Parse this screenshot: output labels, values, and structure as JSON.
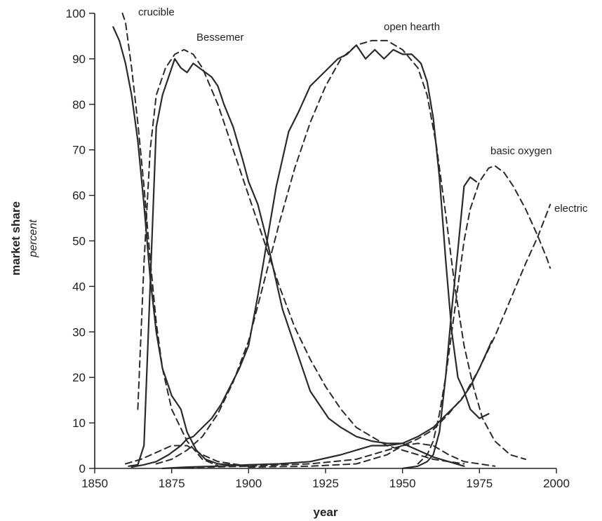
{
  "chart_data": {
    "type": "line",
    "xlabel": "year",
    "ylabel": "market share",
    "ylabel_sub": "percent",
    "xlim": [
      1850,
      2000
    ],
    "ylim": [
      0,
      100
    ],
    "x_ticks": [
      1850,
      1875,
      1900,
      1925,
      1950,
      1975,
      2000
    ],
    "y_ticks": [
      0,
      10,
      20,
      30,
      40,
      50,
      60,
      70,
      80,
      90,
      100
    ],
    "grid": false,
    "legend": "none",
    "series_labels": [
      "crucible",
      "Bessemer",
      "open hearth",
      "basic oxygen",
      "electric"
    ],
    "series": [
      {
        "name": "crucible",
        "style": "actual",
        "points": [
          [
            1856,
            97
          ],
          [
            1858,
            94
          ],
          [
            1860,
            89
          ],
          [
            1862,
            82
          ],
          [
            1864,
            72
          ],
          [
            1866,
            58
          ],
          [
            1868,
            42
          ],
          [
            1870,
            30
          ],
          [
            1872,
            22
          ],
          [
            1875,
            16
          ],
          [
            1878,
            13
          ],
          [
            1880,
            8
          ],
          [
            1883,
            4
          ],
          [
            1886,
            2
          ],
          [
            1890,
            1
          ],
          [
            1900,
            0.5
          ]
        ]
      },
      {
        "name": "crucible",
        "style": "fitted",
        "points": [
          [
            1859,
            100
          ],
          [
            1860,
            98
          ],
          [
            1862,
            88
          ],
          [
            1864,
            76
          ],
          [
            1866,
            62
          ],
          [
            1868,
            46
          ],
          [
            1870,
            32
          ],
          [
            1872,
            22
          ],
          [
            1875,
            13
          ],
          [
            1880,
            6
          ],
          [
            1885,
            2
          ],
          [
            1890,
            0.6
          ]
        ]
      },
      {
        "name": "Bessemer",
        "style": "actual",
        "points": [
          [
            1861,
            0.5
          ],
          [
            1864,
            0.8
          ],
          [
            1866,
            5
          ],
          [
            1868,
            40
          ],
          [
            1870,
            75
          ],
          [
            1872,
            82
          ],
          [
            1874,
            86
          ],
          [
            1876,
            90
          ],
          [
            1878,
            88
          ],
          [
            1880,
            87
          ],
          [
            1882,
            89
          ],
          [
            1884,
            88
          ],
          [
            1886,
            87
          ],
          [
            1888,
            86
          ],
          [
            1890,
            84
          ],
          [
            1892,
            80
          ],
          [
            1895,
            75
          ],
          [
            1898,
            68
          ],
          [
            1900,
            63
          ],
          [
            1903,
            58
          ],
          [
            1906,
            50
          ],
          [
            1908,
            44
          ],
          [
            1911,
            35
          ],
          [
            1914,
            29
          ],
          [
            1917,
            23
          ],
          [
            1920,
            17
          ],
          [
            1923,
            14
          ],
          [
            1926,
            11
          ],
          [
            1930,
            9
          ],
          [
            1935,
            7
          ],
          [
            1940,
            6
          ],
          [
            1945,
            5.5
          ],
          [
            1950,
            5.5
          ],
          [
            1955,
            4
          ],
          [
            1960,
            2.5
          ],
          [
            1965,
            1.5
          ],
          [
            1970,
            0.5
          ]
        ]
      },
      {
        "name": "Bessemer",
        "style": "fitted",
        "points": [
          [
            1864,
            13
          ],
          [
            1866,
            45
          ],
          [
            1868,
            70
          ],
          [
            1870,
            82
          ],
          [
            1873,
            88
          ],
          [
            1876,
            91
          ],
          [
            1879,
            92
          ],
          [
            1882,
            91
          ],
          [
            1885,
            88
          ],
          [
            1890,
            80
          ],
          [
            1895,
            70
          ],
          [
            1900,
            60
          ],
          [
            1905,
            50
          ],
          [
            1910,
            40
          ],
          [
            1915,
            31
          ],
          [
            1920,
            24
          ],
          [
            1925,
            18
          ],
          [
            1930,
            13
          ],
          [
            1935,
            9
          ],
          [
            1940,
            7
          ],
          [
            1945,
            5
          ],
          [
            1950,
            4
          ],
          [
            1955,
            3
          ],
          [
            1960,
            2
          ],
          [
            1970,
            1
          ]
        ]
      },
      {
        "name": "open hearth",
        "style": "actual",
        "points": [
          [
            1862,
            0.3
          ],
          [
            1866,
            0.8
          ],
          [
            1870,
            1.5
          ],
          [
            1874,
            3
          ],
          [
            1878,
            5
          ],
          [
            1880,
            6.5
          ],
          [
            1882,
            7
          ],
          [
            1885,
            9
          ],
          [
            1888,
            11
          ],
          [
            1891,
            14
          ],
          [
            1894,
            18
          ],
          [
            1897,
            22
          ],
          [
            1900,
            27
          ],
          [
            1903,
            38
          ],
          [
            1905,
            46
          ],
          [
            1907,
            54
          ],
          [
            1909,
            62
          ],
          [
            1911,
            68
          ],
          [
            1913,
            74
          ],
          [
            1916,
            78
          ],
          [
            1918,
            81
          ],
          [
            1920,
            84
          ],
          [
            1923,
            86
          ],
          [
            1926,
            88
          ],
          [
            1929,
            90
          ],
          [
            1932,
            91
          ],
          [
            1935,
            93
          ],
          [
            1938,
            90
          ],
          [
            1941,
            92
          ],
          [
            1944,
            90
          ],
          [
            1947,
            92
          ],
          [
            1950,
            91
          ],
          [
            1953,
            91
          ],
          [
            1956,
            89
          ],
          [
            1958,
            85
          ],
          [
            1960,
            77
          ],
          [
            1962,
            64
          ],
          [
            1964,
            46
          ],
          [
            1966,
            30
          ],
          [
            1968,
            20
          ],
          [
            1970,
            17
          ],
          [
            1972,
            13
          ],
          [
            1975,
            11
          ],
          [
            1978,
            12
          ]
        ]
      },
      {
        "name": "open hearth",
        "style": "fitted",
        "points": [
          [
            1870,
            1
          ],
          [
            1875,
            2
          ],
          [
            1880,
            4
          ],
          [
            1885,
            7
          ],
          [
            1890,
            12
          ],
          [
            1895,
            19
          ],
          [
            1900,
            28
          ],
          [
            1905,
            41
          ],
          [
            1910,
            54
          ],
          [
            1915,
            66
          ],
          [
            1920,
            76
          ],
          [
            1925,
            84
          ],
          [
            1930,
            90
          ],
          [
            1935,
            93
          ],
          [
            1940,
            94
          ],
          [
            1945,
            94
          ],
          [
            1950,
            92
          ],
          [
            1955,
            88
          ],
          [
            1958,
            82
          ],
          [
            1961,
            71
          ],
          [
            1964,
            56
          ],
          [
            1967,
            40
          ],
          [
            1970,
            27
          ],
          [
            1973,
            18
          ],
          [
            1976,
            11
          ],
          [
            1980,
            6
          ],
          [
            1985,
            3
          ],
          [
            1990,
            2
          ]
        ]
      },
      {
        "name": "basic oxygen",
        "style": "actual",
        "points": [
          [
            1950,
            0
          ],
          [
            1955,
            0.5
          ],
          [
            1958,
            1.5
          ],
          [
            1960,
            3
          ],
          [
            1962,
            8
          ],
          [
            1964,
            20
          ],
          [
            1966,
            35
          ],
          [
            1968,
            48
          ],
          [
            1970,
            62
          ],
          [
            1972,
            64
          ],
          [
            1974,
            63
          ]
        ]
      },
      {
        "name": "basic oxygen",
        "style": "fitted",
        "points": [
          [
            1955,
            1
          ],
          [
            1958,
            3
          ],
          [
            1960,
            6
          ],
          [
            1962,
            12
          ],
          [
            1964,
            20
          ],
          [
            1966,
            30
          ],
          [
            1968,
            40
          ],
          [
            1970,
            50
          ],
          [
            1972,
            57
          ],
          [
            1975,
            63
          ],
          [
            1978,
            66
          ],
          [
            1980,
            66.5
          ],
          [
            1983,
            65
          ],
          [
            1986,
            62
          ],
          [
            1990,
            57
          ],
          [
            1994,
            51
          ],
          [
            1997,
            46
          ],
          [
            1998,
            44
          ]
        ]
      },
      {
        "name": "electric",
        "style": "actual",
        "points": [
          [
            1872,
            0
          ],
          [
            1880,
            0.3
          ],
          [
            1890,
            0.5
          ],
          [
            1900,
            0.8
          ],
          [
            1910,
            1
          ],
          [
            1920,
            1.5
          ],
          [
            1930,
            3
          ],
          [
            1940,
            5
          ],
          [
            1945,
            5
          ],
          [
            1950,
            5.5
          ],
          [
            1955,
            7
          ],
          [
            1960,
            9
          ],
          [
            1963,
            11
          ],
          [
            1966,
            13
          ],
          [
            1969,
            15
          ],
          [
            1972,
            18
          ],
          [
            1975,
            22
          ],
          [
            1977,
            25
          ],
          [
            1979,
            28
          ]
        ]
      },
      {
        "name": "electric",
        "style": "fitted",
        "points": [
          [
            1880,
            0.2
          ],
          [
            1900,
            0.5
          ],
          [
            1920,
            1
          ],
          [
            1935,
            2
          ],
          [
            1945,
            4
          ],
          [
            1950,
            5
          ],
          [
            1955,
            6.5
          ],
          [
            1960,
            8.5
          ],
          [
            1965,
            12
          ],
          [
            1970,
            16
          ],
          [
            1975,
            22
          ],
          [
            1980,
            29
          ],
          [
            1985,
            37
          ],
          [
            1990,
            45
          ],
          [
            1994,
            51
          ],
          [
            1998,
            58
          ]
        ]
      },
      {
        "name": "Bessemer",
        "style": "fitted",
        "points": [
          [
            1860,
            1
          ],
          [
            1865,
            2
          ],
          [
            1870,
            3.5
          ],
          [
            1875,
            5
          ],
          [
            1880,
            5
          ],
          [
            1885,
            3
          ],
          [
            1890,
            1.5
          ],
          [
            1900,
            0.5
          ]
        ]
      },
      {
        "name": "open hearth",
        "style": "fitted",
        "points": [
          [
            1900,
            0.3
          ],
          [
            1920,
            0.5
          ],
          [
            1935,
            1
          ],
          [
            1945,
            3
          ],
          [
            1950,
            5
          ],
          [
            1955,
            5.5
          ],
          [
            1960,
            5
          ],
          [
            1965,
            3
          ],
          [
            1970,
            1.5
          ],
          [
            1980,
            0.5
          ]
        ]
      }
    ]
  }
}
